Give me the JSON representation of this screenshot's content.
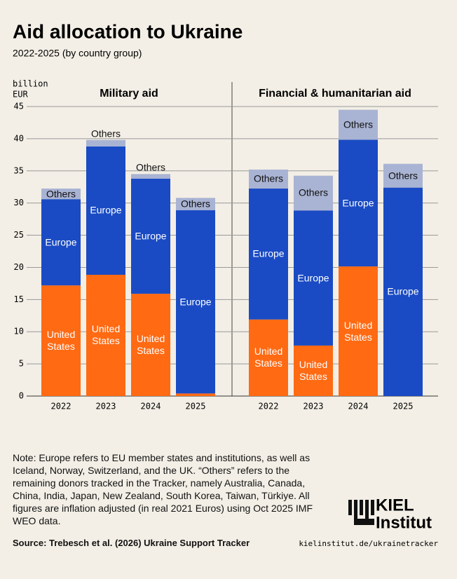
{
  "header": {
    "title": "Aid allocation to Ukraine",
    "subtitle": "2022-2025 (by country group)",
    "unit_line1": "billion",
    "unit_line2": "EUR"
  },
  "chart_data": [
    {
      "type": "bar",
      "stacked": true,
      "title": "Military aid",
      "categories": [
        "2022",
        "2023",
        "2024",
        "2025"
      ],
      "series": [
        {
          "name": "United States",
          "color": "#ff6a13",
          "values": [
            17.2,
            18.85,
            15.9,
            0.4
          ]
        },
        {
          "name": "Europe",
          "color": "#1a4bc4",
          "values": [
            13.4,
            19.95,
            17.9,
            28.5
          ]
        },
        {
          "name": "Others",
          "color": "#a9b3d3",
          "values": [
            1.65,
            1.0,
            0.7,
            1.9
          ]
        }
      ],
      "ylim": [
        0,
        45
      ],
      "yticks": [
        0,
        5,
        10,
        15,
        20,
        25,
        30,
        35,
        40,
        45
      ],
      "grid": true
    },
    {
      "type": "bar",
      "stacked": true,
      "title": "Financial & humanitarian aid",
      "categories": [
        "2022",
        "2023",
        "2024",
        "2025"
      ],
      "series": [
        {
          "name": "United States",
          "color": "#ff6a13",
          "values": [
            11.9,
            7.85,
            20.15,
            0
          ]
        },
        {
          "name": "Europe",
          "color": "#1a4bc4",
          "values": [
            20.35,
            21.0,
            19.7,
            32.4
          ]
        },
        {
          "name": "Others",
          "color": "#a9b3d3",
          "values": [
            2.95,
            5.4,
            4.65,
            3.7
          ]
        }
      ],
      "ylim": [
        0,
        45
      ]
    }
  ],
  "footer": {
    "note": "Note: Europe refers to EU member states and institutions, as well as Iceland, Norway, Switzerland, and the UK. “Others” refers to the remaining donors tracked in the Tracker, namely Australia, Canada, China, India, Japan, New Zealand, South Korea, Taiwan, Türkiye. All figures are inflation adjusted (in real 2021 Euros) using Oct 2025 IMF WEO data.",
    "source": "Source: Trebesch et al. (2026) Ukraine Support Tracker",
    "url": "kielinstitut.de/ukrainetracker",
    "logo_line1": "KIEL",
    "logo_line2": "Institut"
  }
}
